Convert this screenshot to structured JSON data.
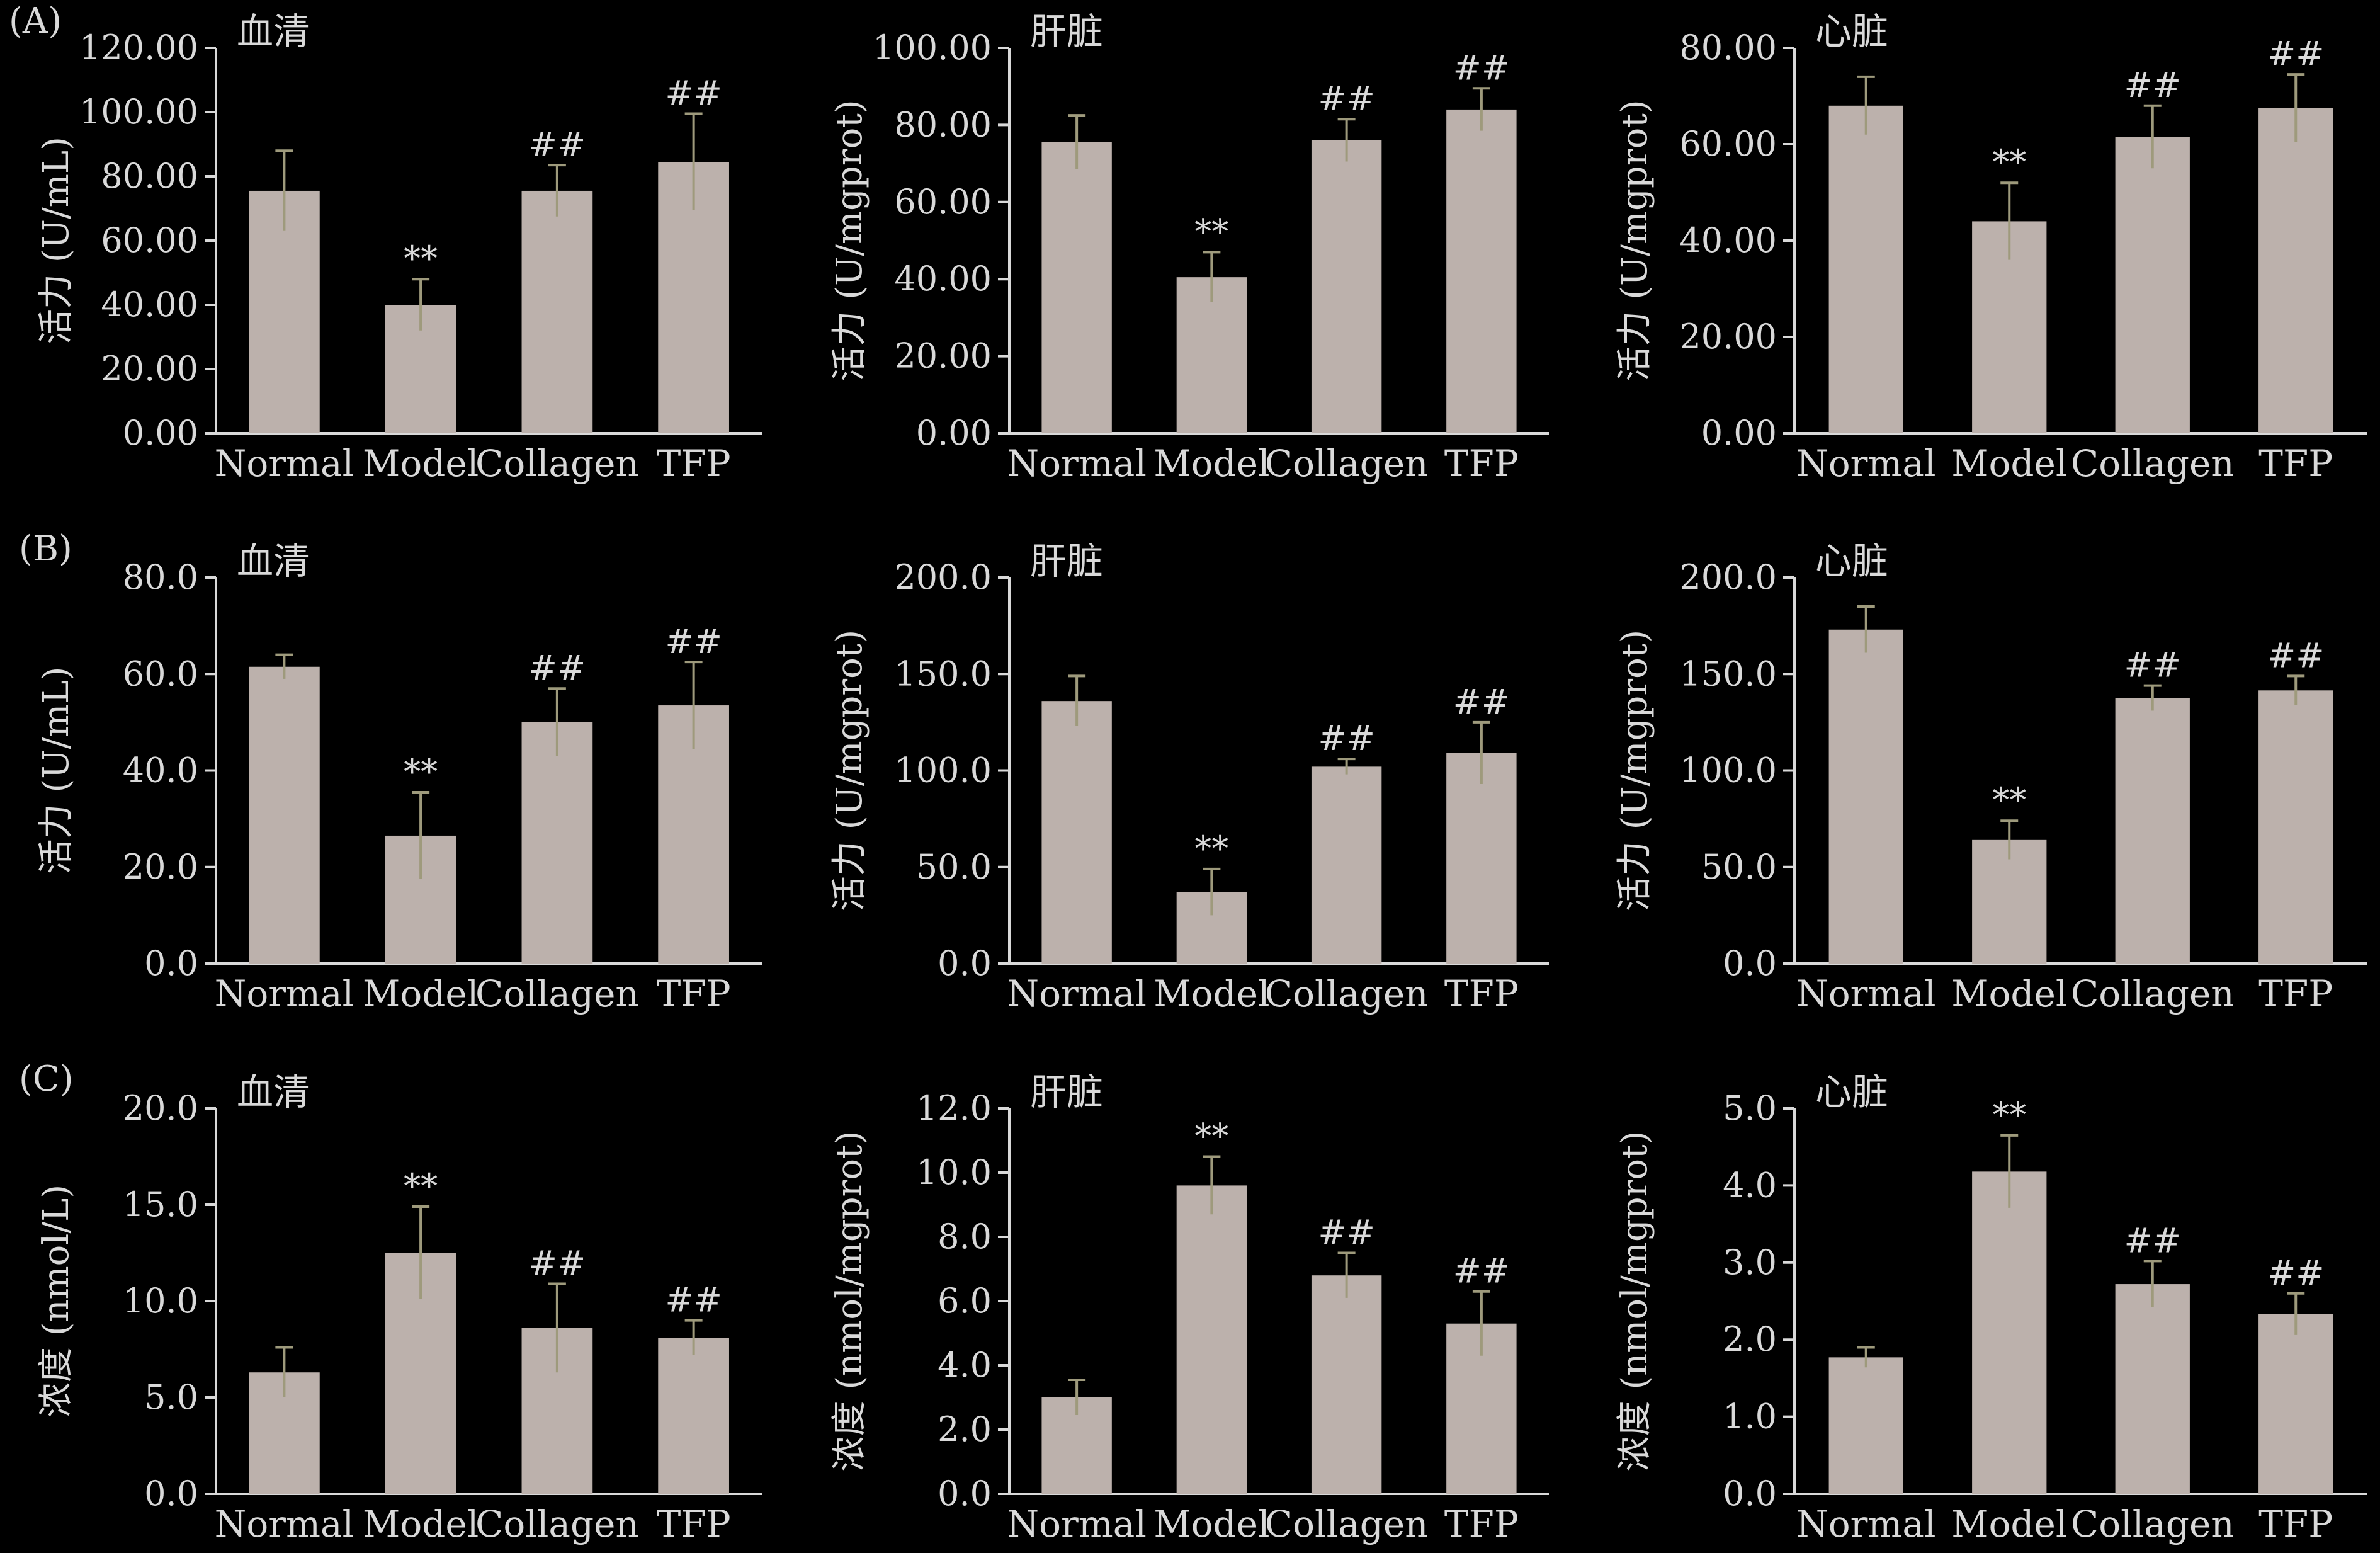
{
  "colors": {
    "background": "#000000",
    "text": "#d9d9d9",
    "axis": "#d9d9d9",
    "bar": "#bcb1ac",
    "error_bar": "#9e9a7c"
  },
  "row_labels": [
    "(A)",
    "(B)",
    "(C)"
  ],
  "chart_data": [
    {
      "type": "bar",
      "row": 0,
      "col": 0,
      "title": "血清",
      "ylabel": "活力 (U/mL)",
      "categories": [
        "Normal",
        "Model",
        "Collagen",
        "TFP"
      ],
      "values": [
        75.5,
        40.0,
        75.5,
        84.5
      ],
      "errors": [
        12.5,
        8.0,
        8.0,
        15.0
      ],
      "marks": [
        "",
        "**",
        "##",
        "##"
      ],
      "ylim": [
        0,
        120
      ],
      "yticks": [
        0,
        20,
        40,
        60,
        80,
        100,
        120
      ],
      "tick_decimals": 2
    },
    {
      "type": "bar",
      "row": 0,
      "col": 1,
      "title": "肝脏",
      "ylabel": "活力 (U/mgprot)",
      "categories": [
        "Normal",
        "Model",
        "Collagen",
        "TFP"
      ],
      "values": [
        75.5,
        40.5,
        76.0,
        84.0
      ],
      "errors": [
        7.0,
        6.5,
        5.5,
        5.5
      ],
      "marks": [
        "",
        "**",
        "##",
        "##"
      ],
      "ylim": [
        0,
        100
      ],
      "yticks": [
        0,
        20,
        40,
        60,
        80,
        100
      ],
      "tick_decimals": 2
    },
    {
      "type": "bar",
      "row": 0,
      "col": 2,
      "title": "心脏",
      "ylabel": "活力 (U/mgprot)",
      "categories": [
        "Normal",
        "Model",
        "Collagen",
        "TFP"
      ],
      "values": [
        68.0,
        44.0,
        61.5,
        67.5
      ],
      "errors": [
        6.0,
        8.0,
        6.5,
        7.0
      ],
      "marks": [
        "",
        "**",
        "##",
        "##"
      ],
      "ylim": [
        0,
        80
      ],
      "yticks": [
        0,
        20,
        40,
        60,
        80
      ],
      "tick_decimals": 2
    },
    {
      "type": "bar",
      "row": 1,
      "col": 0,
      "title": "血清",
      "ylabel": "活力 (U/mL)",
      "categories": [
        "Normal",
        "Model",
        "Collagen",
        "TFP"
      ],
      "values": [
        61.5,
        26.5,
        50.0,
        53.5
      ],
      "errors": [
        2.5,
        9.0,
        7.0,
        9.0
      ],
      "marks": [
        "",
        "**",
        "##",
        "##"
      ],
      "ylim": [
        0,
        80
      ],
      "yticks": [
        0,
        20,
        40,
        60,
        80
      ],
      "tick_decimals": 1
    },
    {
      "type": "bar",
      "row": 1,
      "col": 1,
      "title": "肝脏",
      "ylabel": "活力 (U/mgprot)",
      "categories": [
        "Normal",
        "Model",
        "Collagen",
        "TFP"
      ],
      "values": [
        136.0,
        37.0,
        102.0,
        109.0
      ],
      "errors": [
        13.0,
        12.0,
        4.0,
        16.0
      ],
      "marks": [
        "",
        "**",
        "##",
        "##"
      ],
      "ylim": [
        0,
        200
      ],
      "yticks": [
        0,
        50,
        100,
        150,
        200
      ],
      "tick_decimals": 1
    },
    {
      "type": "bar",
      "row": 1,
      "col": 2,
      "title": "心脏",
      "ylabel": "活力 (U/mgprot)",
      "categories": [
        "Normal",
        "Model",
        "Collagen",
        "TFP"
      ],
      "values": [
        173.0,
        64.0,
        137.5,
        141.5
      ],
      "errors": [
        12.0,
        10.0,
        6.5,
        7.5
      ],
      "marks": [
        "",
        "**",
        "##",
        "##"
      ],
      "ylim": [
        0,
        200
      ],
      "yticks": [
        0,
        50,
        100,
        150,
        200
      ],
      "tick_decimals": 1
    },
    {
      "type": "bar",
      "row": 2,
      "col": 0,
      "title": "血清",
      "ylabel": "浓度 (nmol/L)",
      "categories": [
        "Normal",
        "Model",
        "Collagen",
        "TFP"
      ],
      "values": [
        6.3,
        12.5,
        8.6,
        8.1
      ],
      "errors": [
        1.3,
        2.4,
        2.3,
        0.9
      ],
      "marks": [
        "",
        "**",
        "##",
        "##"
      ],
      "ylim": [
        0,
        20
      ],
      "yticks": [
        0,
        5,
        10,
        15,
        20
      ],
      "tick_decimals": 1
    },
    {
      "type": "bar",
      "row": 2,
      "col": 1,
      "title": "肝脏",
      "ylabel": "浓度 (nmol/mgprot)",
      "categories": [
        "Normal",
        "Model",
        "Collagen",
        "TFP"
      ],
      "values": [
        3.0,
        9.6,
        6.8,
        5.3
      ],
      "errors": [
        0.55,
        0.9,
        0.7,
        1.0
      ],
      "marks": [
        "",
        "**",
        "##",
        "##"
      ],
      "ylim": [
        0,
        12
      ],
      "yticks": [
        0,
        2,
        4,
        6,
        8,
        10,
        12
      ],
      "tick_decimals": 1
    },
    {
      "type": "bar",
      "row": 2,
      "col": 2,
      "title": "心脏",
      "ylabel": "浓度 (nmol/mgprot)",
      "categories": [
        "Normal",
        "Model",
        "Collagen",
        "TFP"
      ],
      "values": [
        1.77,
        4.18,
        2.72,
        2.33
      ],
      "errors": [
        0.13,
        0.47,
        0.3,
        0.27
      ],
      "marks": [
        "",
        "**",
        "##",
        "##"
      ],
      "ylim": [
        0,
        5
      ],
      "yticks": [
        0,
        1,
        2,
        3,
        4,
        5
      ],
      "tick_decimals": 1
    }
  ]
}
